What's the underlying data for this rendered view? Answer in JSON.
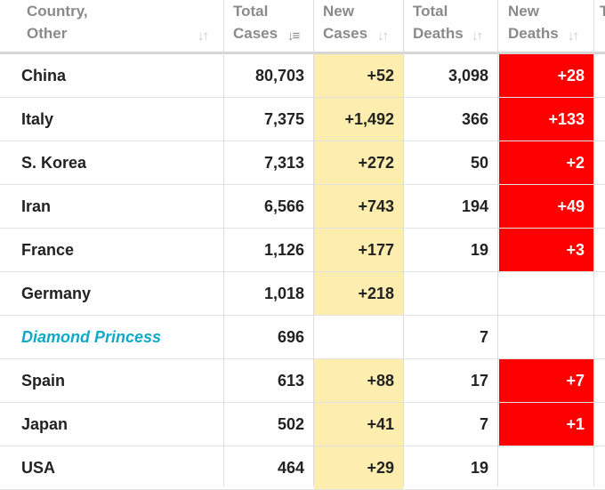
{
  "headers": {
    "country": [
      "Country,",
      "Other"
    ],
    "total_cases": [
      "Total",
      "Cases"
    ],
    "new_cases": [
      "New",
      "Cases"
    ],
    "total_deaths": [
      "Total",
      "Deaths"
    ],
    "new_deaths": [
      "New",
      "Deaths"
    ],
    "edge": [
      "T",
      ""
    ]
  },
  "icons": {
    "sort_inactive": "sort-icon",
    "sort_active": "sort-desc-icon"
  },
  "colors": {
    "new_cases_bg": "#fdeeb0",
    "new_deaths_bg": "#ff0000",
    "link": "#11a9c8",
    "header_text": "#8a8a8a"
  },
  "rows": [
    {
      "country": "China",
      "total_cases": "80,703",
      "new_cases": "+52",
      "total_deaths": "3,098",
      "new_deaths": "+28",
      "link": false
    },
    {
      "country": "Italy",
      "total_cases": "7,375",
      "new_cases": "+1,492",
      "total_deaths": "366",
      "new_deaths": "+133",
      "link": false
    },
    {
      "country": "S. Korea",
      "total_cases": "7,313",
      "new_cases": "+272",
      "total_deaths": "50",
      "new_deaths": "+2",
      "link": false
    },
    {
      "country": "Iran",
      "total_cases": "6,566",
      "new_cases": "+743",
      "total_deaths": "194",
      "new_deaths": "+49",
      "link": false
    },
    {
      "country": "France",
      "total_cases": "1,126",
      "new_cases": "+177",
      "total_deaths": "19",
      "new_deaths": "+3",
      "link": false
    },
    {
      "country": "Germany",
      "total_cases": "1,018",
      "new_cases": "+218",
      "total_deaths": "",
      "new_deaths": "",
      "link": false
    },
    {
      "country": "Diamond Princess",
      "total_cases": "696",
      "new_cases": "",
      "total_deaths": "7",
      "new_deaths": "",
      "link": true
    },
    {
      "country": "Spain",
      "total_cases": "613",
      "new_cases": "+88",
      "total_deaths": "17",
      "new_deaths": "+7",
      "link": false
    },
    {
      "country": "Japan",
      "total_cases": "502",
      "new_cases": "+41",
      "total_deaths": "7",
      "new_deaths": "+1",
      "link": false
    },
    {
      "country": "USA",
      "total_cases": "464",
      "new_cases": "+29",
      "total_deaths": "19",
      "new_deaths": "",
      "link": false
    }
  ]
}
